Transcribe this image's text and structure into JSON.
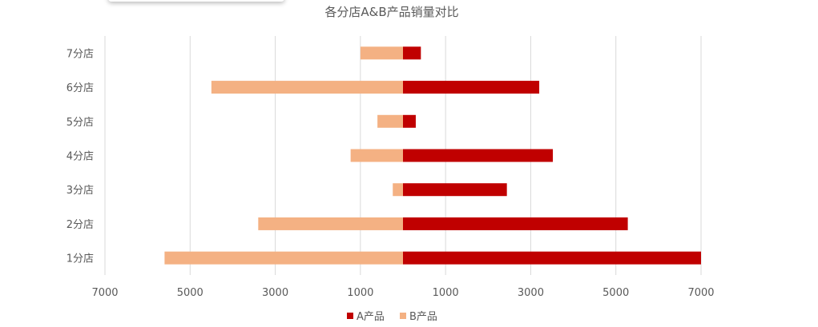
{
  "chart_data": {
    "type": "bar",
    "orientation": "horizontal",
    "layout": "butterfly",
    "title": "各分店A&B产品销量对比",
    "categories": [
      "1分店",
      "2分店",
      "3分店",
      "4分店",
      "5分店",
      "6分店",
      "7分店"
    ],
    "series": [
      {
        "name": "A产品",
        "side": "right",
        "values": [
          7000,
          5280,
          2440,
          3520,
          300,
          3200,
          420
        ]
      },
      {
        "name": "B产品",
        "side": "left",
        "values": [
          5600,
          3400,
          240,
          1230,
          600,
          4500,
          1000
        ]
      }
    ],
    "x_tick_labels": [
      "7000",
      "5000",
      "3000",
      "1000",
      "1000",
      "3000",
      "5000",
      "7000"
    ],
    "x_tick_values": [
      -7000,
      -5000,
      -3000,
      -1000,
      1000,
      3000,
      5000,
      7000
    ],
    "xlim": [
      -7000,
      7000
    ],
    "grid": "vertical",
    "legend_position": "bottom"
  },
  "colors": {
    "series_a": "#C00000",
    "series_b": "#F4B183",
    "grid": "#D9D9D9",
    "text": "#595959",
    "title": "#595959"
  }
}
